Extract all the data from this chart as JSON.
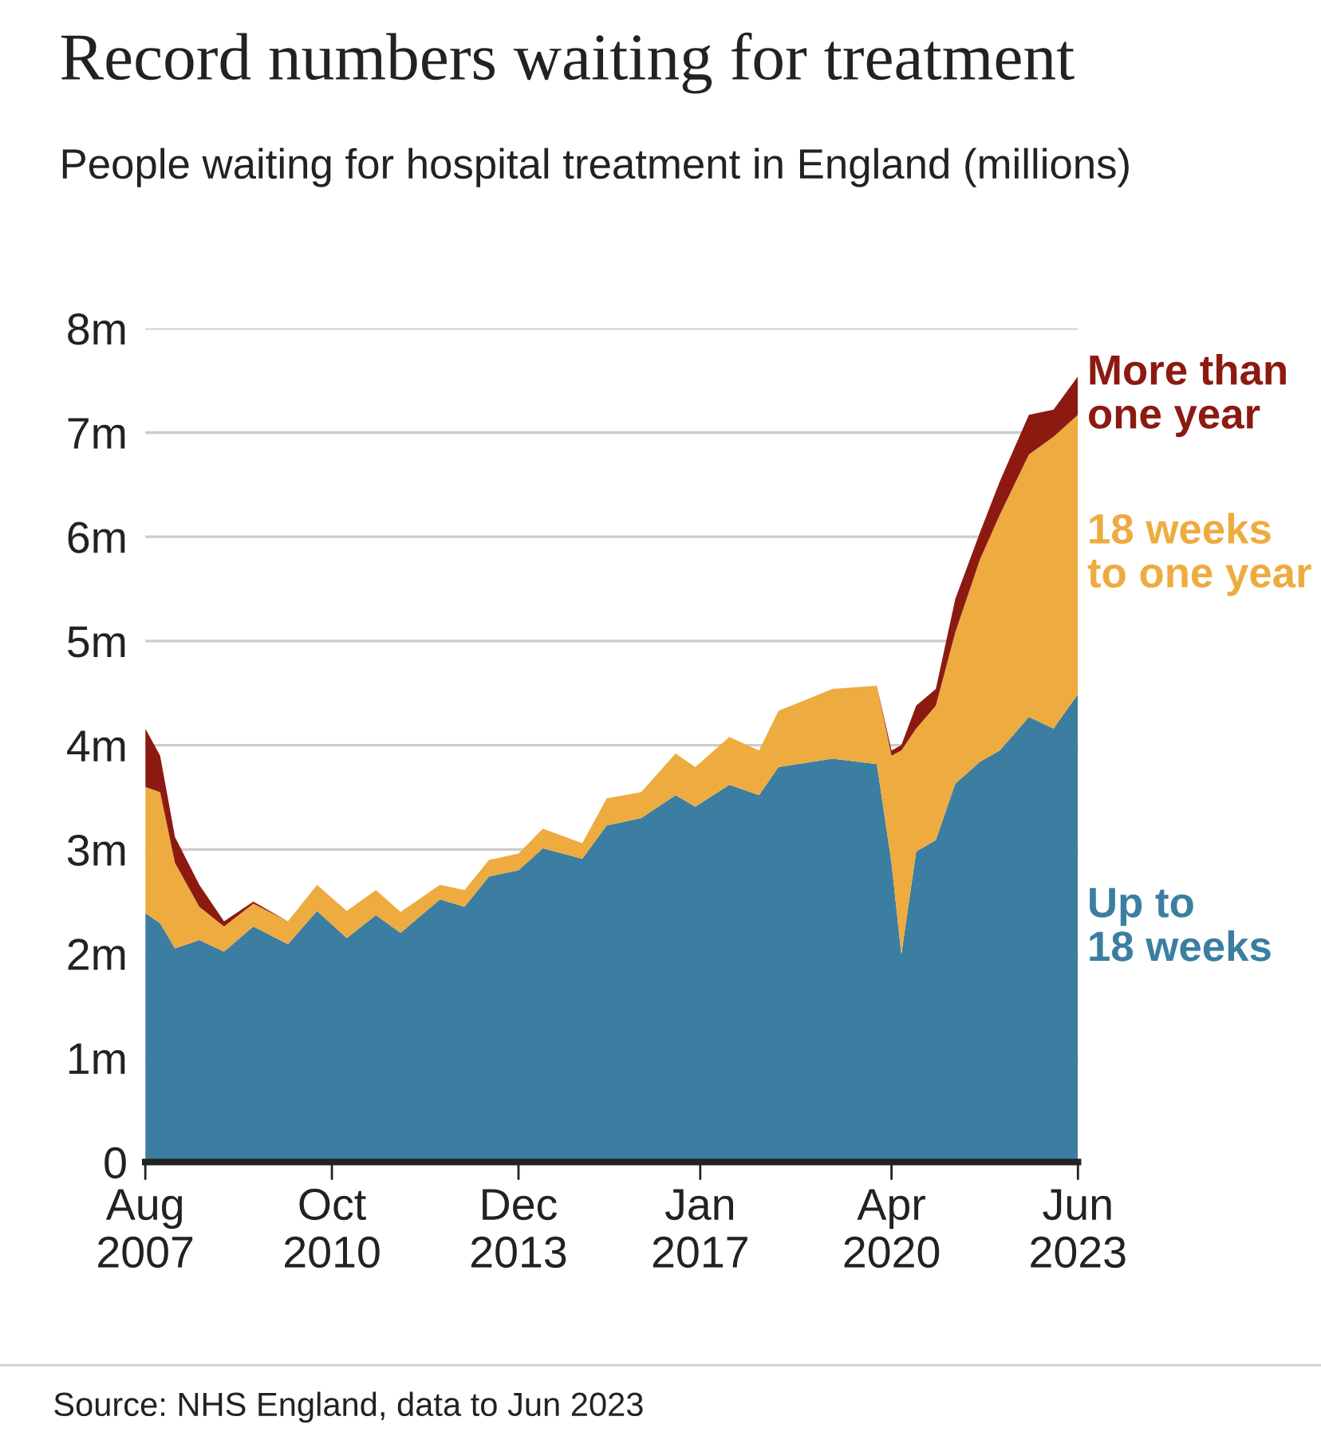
{
  "chart_data": {
    "type": "area",
    "stacked": true,
    "title": "Record numbers waiting for treatment",
    "subtitle": "People waiting for hospital treatment in England (millions)",
    "annotations": [
      "Source: NHS England, data to Jun 2023"
    ],
    "x": [
      "2007-08",
      "2007-11",
      "2008-02",
      "2008-07",
      "2008-12",
      "2009-06",
      "2010-01",
      "2010-07",
      "2011-01",
      "2011-07",
      "2011-12",
      "2012-08",
      "2013-01",
      "2013-06",
      "2013-12",
      "2014-05",
      "2015-01",
      "2015-06",
      "2016-01",
      "2016-08",
      "2016-12",
      "2017-07",
      "2018-01",
      "2018-05",
      "2019-04",
      "2020-01",
      "2020-04",
      "2020-06",
      "2020-09",
      "2021-01",
      "2021-05",
      "2021-10",
      "2022-02",
      "2022-08",
      "2023-01",
      "2023-06"
    ],
    "series": [
      {
        "name": "Up to\n18 weeks",
        "color": "#3b7ea1",
        "values": [
          2.39,
          2.29,
          2.05,
          2.13,
          2.02,
          2.26,
          2.09,
          2.41,
          2.15,
          2.37,
          2.2,
          2.52,
          2.45,
          2.74,
          2.8,
          3.01,
          2.91,
          3.23,
          3.3,
          3.52,
          3.41,
          3.62,
          3.52,
          3.79,
          3.87,
          3.82,
          2.87,
          1.99,
          2.98,
          3.09,
          3.63,
          3.84,
          3.95,
          4.27,
          4.16,
          4.49
        ]
      },
      {
        "name": "18 weeks\nto one year",
        "color": "#eeab3f",
        "values": [
          1.21,
          1.26,
          0.82,
          0.32,
          0.24,
          0.22,
          0.22,
          0.25,
          0.26,
          0.24,
          0.2,
          0.14,
          0.16,
          0.16,
          0.16,
          0.19,
          0.15,
          0.26,
          0.25,
          0.4,
          0.38,
          0.46,
          0.43,
          0.54,
          0.67,
          0.75,
          1.03,
          1.96,
          1.18,
          1.29,
          1.45,
          1.94,
          2.26,
          2.52,
          2.8,
          2.68
        ]
      },
      {
        "name": "More than\none year",
        "color": "#8c1a11",
        "values": [
          0.56,
          0.35,
          0.25,
          0.21,
          0.05,
          0.02,
          0,
          0,
          0,
          0,
          0,
          0,
          0,
          0,
          0,
          0,
          0,
          0,
          0,
          0,
          0,
          0,
          0,
          0,
          0,
          0,
          0.05,
          0.05,
          0.22,
          0.16,
          0.32,
          0.26,
          0.32,
          0.38,
          0.26,
          0.37
        ]
      }
    ],
    "xlim": [
      "2007-08",
      "2023-06"
    ],
    "xticks": [
      {
        "value": "2007-08",
        "label": "Aug\n2007"
      },
      {
        "value": "2010-10",
        "label": "Oct\n2010"
      },
      {
        "value": "2013-12",
        "label": "Dec\n2013"
      },
      {
        "value": "2017-01",
        "label": "Jan\n2017"
      },
      {
        "value": "2020-04",
        "label": "Apr\n2020"
      },
      {
        "value": "2023-06",
        "label": "Jun\n2023"
      }
    ],
    "ylim": [
      0,
      8
    ],
    "yticks": [
      0,
      {
        "value": 1,
        "label": "1m"
      },
      {
        "value": 2,
        "label": "2m"
      },
      {
        "value": 3,
        "label": "3m"
      },
      {
        "value": 4,
        "label": "4m"
      },
      {
        "value": 5,
        "label": "5m"
      },
      {
        "value": 6,
        "label": "6m"
      },
      {
        "value": 7,
        "label": "7m"
      },
      {
        "value": 8,
        "label": "8m"
      }
    ],
    "grid": "y",
    "legend": false
  }
}
